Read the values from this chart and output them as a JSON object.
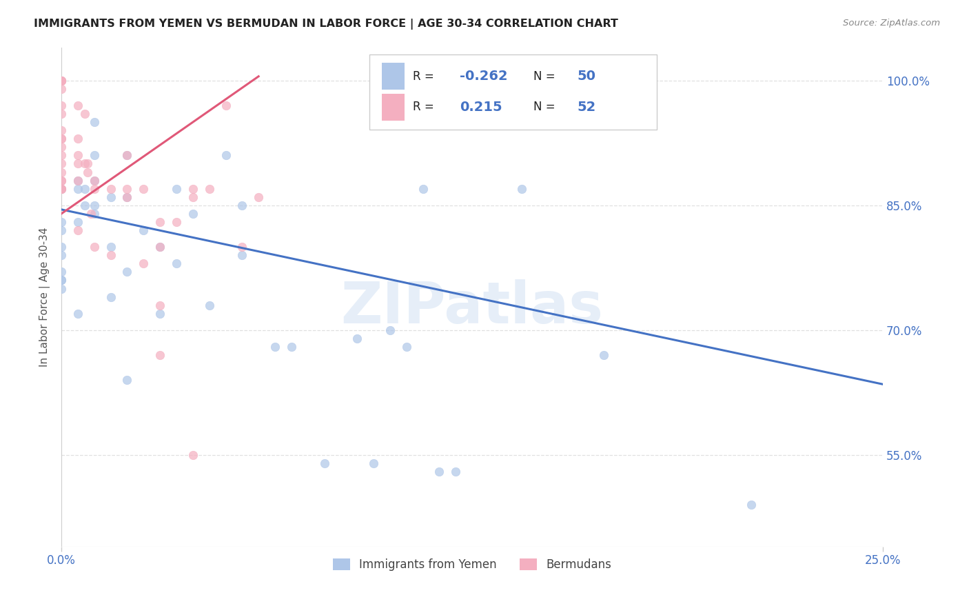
{
  "title": "IMMIGRANTS FROM YEMEN VS BERMUDAN IN LABOR FORCE | AGE 30-34 CORRELATION CHART",
  "source": "Source: ZipAtlas.com",
  "ylabel": "In Labor Force | Age 30-34",
  "xlim": [
    0.0,
    0.25
  ],
  "ylim": [
    0.44,
    1.04
  ],
  "ytick_labels": [
    "55.0%",
    "70.0%",
    "85.0%",
    "100.0%"
  ],
  "ytick_values": [
    0.55,
    0.7,
    0.85,
    1.0
  ],
  "xtick_labels": [
    "0.0%",
    "25.0%"
  ],
  "xtick_values": [
    0.0,
    0.25
  ],
  "legend_entries": [
    {
      "label": "Immigrants from Yemen",
      "color": "#aec6e8"
    },
    {
      "label": "Bermudans",
      "color": "#f4afc0"
    }
  ],
  "watermark": "ZIPatlas",
  "blue_scatter_x": [
    0.0,
    0.0,
    0.0,
    0.0,
    0.0,
    0.0,
    0.0,
    0.0,
    0.0,
    0.005,
    0.005,
    0.005,
    0.005,
    0.007,
    0.007,
    0.01,
    0.01,
    0.01,
    0.01,
    0.01,
    0.015,
    0.015,
    0.015,
    0.02,
    0.02,
    0.02,
    0.02,
    0.025,
    0.03,
    0.03,
    0.035,
    0.035,
    0.04,
    0.045,
    0.05,
    0.055,
    0.055,
    0.065,
    0.07,
    0.08,
    0.09,
    0.095,
    0.1,
    0.105,
    0.11,
    0.115,
    0.12,
    0.14,
    0.165,
    0.21
  ],
  "blue_scatter_y": [
    0.87,
    0.83,
    0.82,
    0.8,
    0.79,
    0.77,
    0.76,
    0.76,
    0.75,
    0.88,
    0.87,
    0.83,
    0.72,
    0.87,
    0.85,
    0.95,
    0.91,
    0.88,
    0.85,
    0.84,
    0.86,
    0.8,
    0.74,
    0.91,
    0.86,
    0.77,
    0.64,
    0.82,
    0.8,
    0.72,
    0.87,
    0.78,
    0.84,
    0.73,
    0.91,
    0.85,
    0.79,
    0.68,
    0.68,
    0.54,
    0.69,
    0.54,
    0.7,
    0.68,
    0.87,
    0.53,
    0.53,
    0.87,
    0.67,
    0.49
  ],
  "pink_scatter_x": [
    0.0,
    0.0,
    0.0,
    0.0,
    0.0,
    0.0,
    0.0,
    0.0,
    0.0,
    0.0,
    0.0,
    0.0,
    0.0,
    0.0,
    0.0,
    0.0,
    0.0,
    0.0,
    0.0,
    0.005,
    0.005,
    0.005,
    0.005,
    0.005,
    0.005,
    0.007,
    0.007,
    0.008,
    0.008,
    0.009,
    0.01,
    0.01,
    0.01,
    0.015,
    0.015,
    0.02,
    0.02,
    0.02,
    0.025,
    0.025,
    0.03,
    0.03,
    0.03,
    0.03,
    0.035,
    0.04,
    0.04,
    0.04,
    0.045,
    0.05,
    0.055,
    0.06
  ],
  "pink_scatter_y": [
    1.0,
    1.0,
    1.0,
    1.0,
    0.99,
    0.97,
    0.96,
    0.94,
    0.93,
    0.93,
    0.92,
    0.91,
    0.9,
    0.89,
    0.88,
    0.88,
    0.87,
    0.87,
    0.87,
    0.97,
    0.93,
    0.91,
    0.9,
    0.88,
    0.82,
    0.96,
    0.9,
    0.9,
    0.89,
    0.84,
    0.88,
    0.87,
    0.8,
    0.87,
    0.79,
    0.91,
    0.87,
    0.86,
    0.87,
    0.78,
    0.83,
    0.8,
    0.73,
    0.67,
    0.83,
    0.87,
    0.86,
    0.55,
    0.87,
    0.97,
    0.8,
    0.86
  ],
  "blue_line_x": [
    0.0,
    0.25
  ],
  "blue_line_y": [
    0.845,
    0.635
  ],
  "pink_line_x": [
    0.0,
    0.06
  ],
  "pink_line_y": [
    0.84,
    1.005
  ],
  "scatter_color_blue": "#aec6e8",
  "scatter_color_pink": "#f4afc0",
  "line_color_blue": "#4472c4",
  "line_color_pink": "#e05878",
  "background_color": "#ffffff",
  "grid_color": "#e0e0e0",
  "legend_R1": "-0.262",
  "legend_N1": "50",
  "legend_R2": "0.215",
  "legend_N2": "52"
}
